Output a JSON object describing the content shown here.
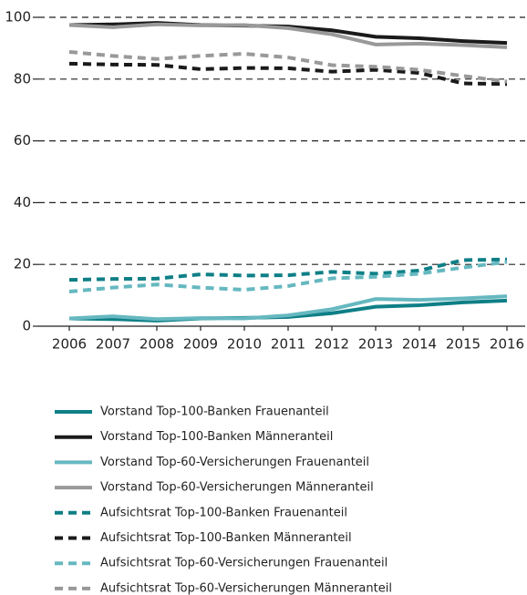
{
  "chart_data": {
    "type": "line",
    "x": [
      "2006",
      "2007",
      "2008",
      "2009",
      "2010",
      "2011",
      "2012",
      "2013",
      "2014",
      "2015",
      "2016"
    ],
    "ylim": [
      0,
      100
    ],
    "yticks": [
      0,
      20,
      40,
      60,
      80,
      100
    ],
    "grid": true,
    "series": [
      {
        "name": "Vorstand Top-100-Banken Frauenanteil",
        "color": "#0e7f86",
        "dashed": false,
        "values": [
          2.5,
          2.3,
          1.8,
          2.5,
          2.7,
          3.0,
          4.2,
          6.3,
          6.8,
          7.7,
          8.3
        ]
      },
      {
        "name": "Vorstand Top-100-Banken Männeranteil",
        "color": "#1a1a1a",
        "dashed": false,
        "values": [
          97.5,
          97.7,
          98.2,
          97.5,
          97.3,
          97.0,
          95.8,
          93.7,
          93.2,
          92.3,
          91.7
        ]
      },
      {
        "name": "Vorstand Top-60-Versicherungen Frauenanteil",
        "color": "#66b8c0",
        "dashed": false,
        "values": [
          2.5,
          3.2,
          2.3,
          2.6,
          2.5,
          3.5,
          5.5,
          8.8,
          8.5,
          9.0,
          9.7
        ]
      },
      {
        "name": "Vorstand Top-60-Versicherungen Männeranteil",
        "color": "#999999",
        "dashed": false,
        "values": [
          97.5,
          96.8,
          97.7,
          97.4,
          97.5,
          96.5,
          94.5,
          91.2,
          91.5,
          91.0,
          90.3
        ]
      },
      {
        "name": "Aufsichtsrat Top-100-Banken Frauenanteil",
        "color": "#0e7f86",
        "dashed": true,
        "values": [
          15.0,
          15.3,
          15.4,
          16.8,
          16.4,
          16.5,
          17.6,
          17.0,
          18.0,
          21.4,
          21.6
        ]
      },
      {
        "name": "Aufsichtsrat Top-100-Banken Männeranteil",
        "color": "#1a1a1a",
        "dashed": true,
        "values": [
          85.0,
          84.7,
          84.6,
          83.2,
          83.6,
          83.5,
          82.4,
          83.0,
          82.0,
          78.6,
          78.4
        ]
      },
      {
        "name": "Aufsichtsrat Top-60-Versicherungen Frauenanteil",
        "color": "#66b8c0",
        "dashed": true,
        "values": [
          11.2,
          12.5,
          13.5,
          12.5,
          11.8,
          13.0,
          15.5,
          16.0,
          17.0,
          19.0,
          20.8
        ]
      },
      {
        "name": "Aufsichtsrat Top-60-Versicherungen Männeranteil",
        "color": "#999999",
        "dashed": true,
        "values": [
          88.8,
          87.5,
          86.5,
          87.5,
          88.2,
          87.0,
          84.5,
          84.0,
          83.0,
          81.0,
          79.2
        ]
      }
    ]
  }
}
